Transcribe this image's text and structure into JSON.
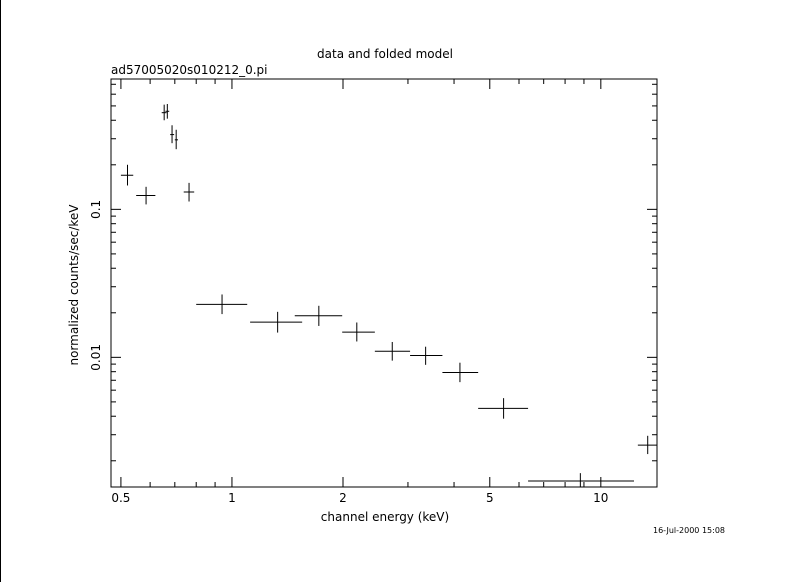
{
  "chart_data": {
    "type": "scatter",
    "title": "data and folded model",
    "subtitle": "ad57005020s010212_0.pi",
    "xlabel": "channel energy (keV)",
    "ylabel": "normalized counts/sec/keV",
    "x_scale": "log",
    "y_scale": "log",
    "xlim": [
      0.47,
      14.2
    ],
    "ylim": [
      0.00133,
      0.76
    ],
    "x_ticks": [
      {
        "value": 0.5,
        "label": "0.5"
      },
      {
        "value": 1,
        "label": "1"
      },
      {
        "value": 2,
        "label": "2"
      },
      {
        "value": 5,
        "label": "5"
      },
      {
        "value": 10,
        "label": "10"
      }
    ],
    "y_ticks": [
      {
        "value": 0.1,
        "label": "0.1"
      },
      {
        "value": 0.01,
        "label": "0.01"
      }
    ],
    "grid": false,
    "points": [
      {
        "x": 0.521,
        "xlo": 0.5,
        "xhi": 0.54,
        "y": 0.17,
        "ylo": 0.145,
        "yhi": 0.2
      },
      {
        "x": 0.585,
        "xlo": 0.55,
        "xhi": 0.62,
        "y": 0.124,
        "ylo": 0.108,
        "yhi": 0.142
      },
      {
        "x": 0.655,
        "xlo": 0.645,
        "xhi": 0.665,
        "y": 0.45,
        "ylo": 0.4,
        "yhi": 0.51
      },
      {
        "x": 0.668,
        "xlo": 0.66,
        "xhi": 0.676,
        "y": 0.46,
        "ylo": 0.41,
        "yhi": 0.515
      },
      {
        "x": 0.688,
        "xlo": 0.68,
        "xhi": 0.697,
        "y": 0.32,
        "ylo": 0.28,
        "yhi": 0.37
      },
      {
        "x": 0.706,
        "xlo": 0.7,
        "xhi": 0.714,
        "y": 0.295,
        "ylo": 0.255,
        "yhi": 0.345
      },
      {
        "x": 0.765,
        "xlo": 0.74,
        "xhi": 0.79,
        "y": 0.131,
        "ylo": 0.113,
        "yhi": 0.151
      },
      {
        "x": 0.94,
        "xlo": 0.8,
        "xhi": 1.1,
        "y": 0.0228,
        "ylo": 0.0196,
        "yhi": 0.0266
      },
      {
        "x": 1.33,
        "xlo": 1.12,
        "xhi": 1.55,
        "y": 0.0173,
        "ylo": 0.0147,
        "yhi": 0.0203
      },
      {
        "x": 1.72,
        "xlo": 1.48,
        "xhi": 1.99,
        "y": 0.0191,
        "ylo": 0.0163,
        "yhi": 0.0223
      },
      {
        "x": 2.18,
        "xlo": 1.99,
        "xhi": 2.44,
        "y": 0.0148,
        "ylo": 0.0128,
        "yhi": 0.0172
      },
      {
        "x": 2.72,
        "xlo": 2.44,
        "xhi": 3.04,
        "y": 0.011,
        "ylo": 0.0095,
        "yhi": 0.0127
      },
      {
        "x": 3.35,
        "xlo": 3.04,
        "xhi": 3.72,
        "y": 0.0103,
        "ylo": 0.0089,
        "yhi": 0.0118
      },
      {
        "x": 4.15,
        "xlo": 3.72,
        "xhi": 4.65,
        "y": 0.0079,
        "ylo": 0.0068,
        "yhi": 0.0092
      },
      {
        "x": 5.45,
        "xlo": 4.65,
        "xhi": 6.35,
        "y": 0.00452,
        "ylo": 0.00385,
        "yhi": 0.0053
      },
      {
        "x": 8.8,
        "xlo": 6.35,
        "xhi": 12.3,
        "y": 0.00146,
        "ylo": 0.00133,
        "yhi": 0.00165
      },
      {
        "x": 13.4,
        "xlo": 12.6,
        "xhi": 14.2,
        "y": 0.00255,
        "ylo": 0.00222,
        "yhi": 0.00295
      }
    ]
  },
  "footer": {
    "timestamp": "16-Jul-2000 15:08"
  }
}
